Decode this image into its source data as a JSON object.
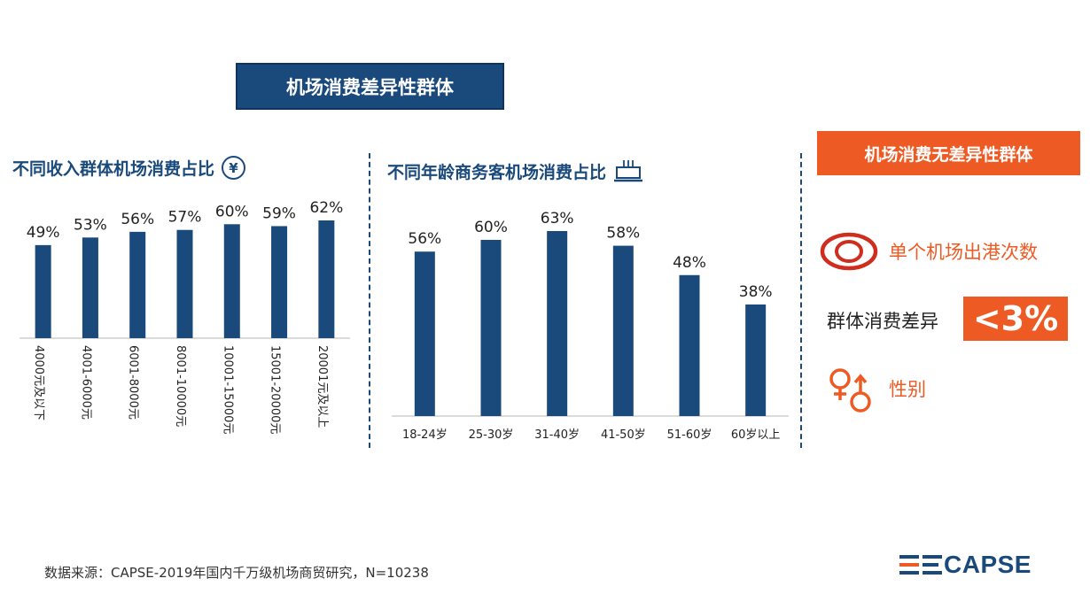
{
  "main_title": "机场消费差异性群体",
  "income_section": {
    "title": "不同收入群体机场消费占比",
    "icon": "yen-circle-icon"
  },
  "age_section": {
    "title": "不同年龄商务客机场消费占比",
    "icon": "briefcase-icon"
  },
  "right_panel": {
    "header": "机场消费无差异性群体",
    "items": [
      {
        "label": "单个机场出港次数",
        "icon": "eye-icon"
      },
      {
        "label": "群体消费差异",
        "value": "<3%"
      },
      {
        "label": "性别",
        "icon": "gender-icon"
      }
    ]
  },
  "footer": {
    "source": "数据来源：CAPSE-2019年国内千万级机场商贸研究，N=10238",
    "logo": "CAPSE"
  },
  "colors": {
    "bar": "#1a4a7c",
    "accent": "#ee5a24"
  },
  "chart_data": [
    {
      "type": "bar",
      "title": "不同收入群体机场消费占比",
      "categories": [
        "4000元及以下",
        "4001-6000元",
        "6001-8000元",
        "8001-10000元",
        "10001-15000元",
        "15001-20000元",
        "20001元及以上"
      ],
      "values": [
        49,
        53,
        56,
        57,
        60,
        59,
        62
      ],
      "value_labels": [
        "49%",
        "53%",
        "56%",
        "57%",
        "60%",
        "59%",
        "62%"
      ],
      "unit": "%",
      "ylim": [
        0,
        62
      ],
      "grid": false,
      "tick_orientation": "vertical"
    },
    {
      "type": "bar",
      "title": "不同年龄商务客机场消费占比",
      "categories": [
        "18-24岁",
        "25-30岁",
        "31-40岁",
        "41-50岁",
        "51-60岁",
        "60岁以上"
      ],
      "values": [
        56,
        60,
        63,
        58,
        48,
        38
      ],
      "value_labels": [
        "56%",
        "60%",
        "63%",
        "58%",
        "48%",
        "38%"
      ],
      "unit": "%",
      "ylim": [
        0,
        63
      ],
      "grid": false,
      "tick_orientation": "horizontal"
    }
  ]
}
